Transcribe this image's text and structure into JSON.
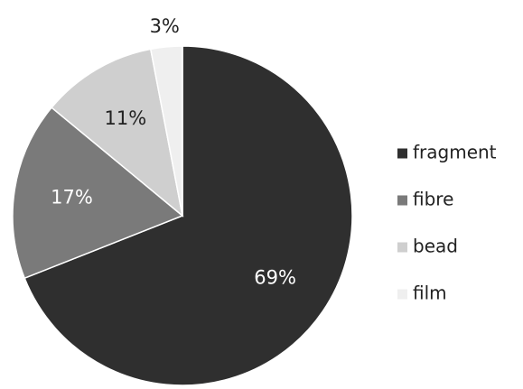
{
  "chart_data": {
    "type": "pie",
    "start_angle_deg": 0,
    "direction": "clockwise",
    "legend_position": "right",
    "slices": [
      {
        "label": "fragment",
        "value": 69,
        "value_label": "69%",
        "color": "#2f2f2f",
        "label_color": "#ffffff",
        "label_placement": "inside"
      },
      {
        "label": "fibre",
        "value": 17,
        "value_label": "17%",
        "color": "#7a7a7a",
        "label_color": "#ffffff",
        "label_placement": "inside"
      },
      {
        "label": "bead",
        "value": 11,
        "value_label": "11%",
        "color": "#cfcfcf",
        "label_color": "#222222",
        "label_placement": "inside"
      },
      {
        "label": "film",
        "value": 3,
        "value_label": "3%",
        "color": "#efefef",
        "label_color": "#222222",
        "label_placement": "outside"
      }
    ]
  }
}
